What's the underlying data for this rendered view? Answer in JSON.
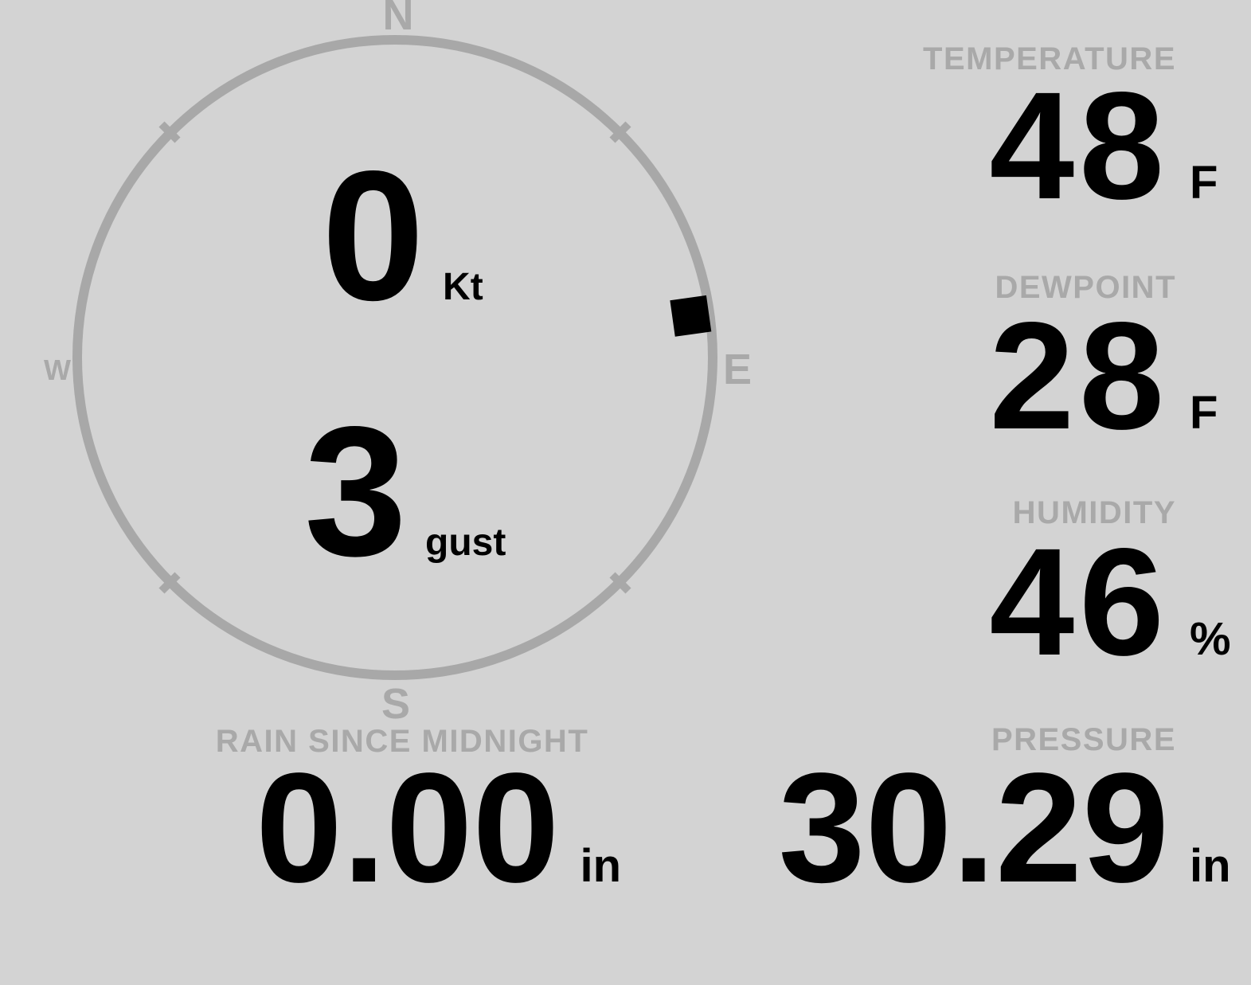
{
  "colors": {
    "background": "#d3d3d3",
    "muted": "#a9a9a9",
    "ring": "#a8a8a8",
    "value": "#000000",
    "marker": "#000000"
  },
  "compass": {
    "cardinals": {
      "north": "N",
      "south": "S",
      "east": "E",
      "west": "W"
    },
    "wind_speed": {
      "value": "0",
      "unit": "Kt"
    },
    "wind_gust": {
      "value": "3",
      "unit": "gust"
    },
    "wind_direction_deg": 82
  },
  "stats": {
    "temperature": {
      "label": "TEMPERATURE",
      "value": "48",
      "unit": "F"
    },
    "dewpoint": {
      "label": "DEWPOINT",
      "value": "28",
      "unit": "F"
    },
    "humidity": {
      "label": "HUMIDITY",
      "value": "46",
      "unit": "%"
    },
    "rain_since_midnight": {
      "label": "RAIN SINCE MIDNIGHT",
      "value": "0.00",
      "unit": "in"
    },
    "pressure": {
      "label": "PRESSURE",
      "value": "30.29",
      "unit": "in"
    }
  }
}
